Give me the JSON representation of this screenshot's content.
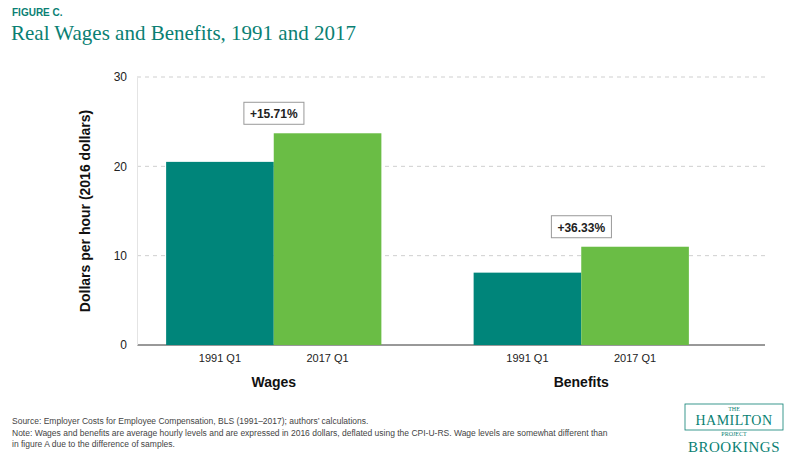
{
  "chart_data": {
    "type": "bar",
    "figure_label": "FIGURE C.",
    "title": "Real Wages and Benefits, 1991 and 2017",
    "y_label": "Dollars per hour (2016 dollars)",
    "categories": [
      "Wages",
      "Benefits"
    ],
    "series": [
      {
        "name": "1991 Q1",
        "color": "#00857a",
        "values": [
          20.5,
          8.1
        ]
      },
      {
        "name": "2017 Q1",
        "color": "#6abd45",
        "values": [
          23.7,
          11.0
        ]
      }
    ],
    "annotations": [
      "+15.71%",
      "+36.33%"
    ],
    "ylim": [
      0,
      30
    ],
    "yticks": [
      0,
      10,
      20,
      30
    ],
    "grid": true,
    "source": "Source: Employer Costs for Employee Compensation, BLS (1991–2017); authors’ calculations.",
    "note": [
      "Note: Wages and benefits are average hourly levels and are expressed in 2016 dollars, deflated using the CPI-U-RS. Wage levels are somewhat different than",
      "in figure A due to the difference of samples."
    ],
    "logo": [
      "THE",
      "HAMILTON",
      "PROJECT",
      "BROOKINGS"
    ]
  }
}
